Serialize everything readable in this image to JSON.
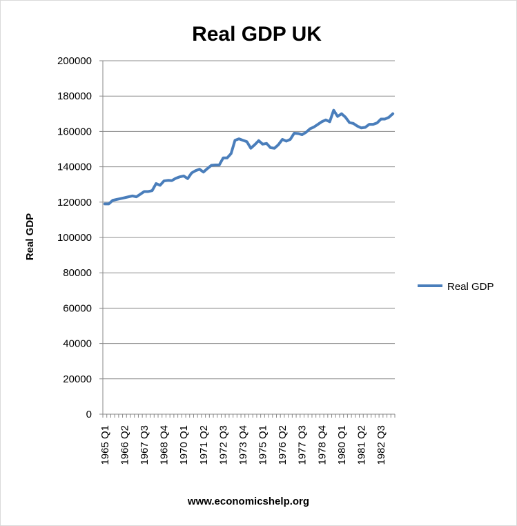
{
  "chart_data": {
    "type": "line",
    "title": "Real GDP UK",
    "ylabel": "Real GDP",
    "xlabel": "www.economicshelp.org",
    "ylim": [
      0,
      200000
    ],
    "yticks": [
      0,
      20000,
      40000,
      60000,
      80000,
      100000,
      120000,
      140000,
      160000,
      180000,
      200000
    ],
    "grid": "horizontal",
    "legend_position": "right",
    "color": "#4a7ebb",
    "x_tick_labels": [
      "1965 Q1",
      "1966 Q2",
      "1967 Q3",
      "1968 Q4",
      "1970 Q1",
      "1971 Q2",
      "1972 Q3",
      "1973 Q4",
      "1975 Q1",
      "1976 Q2",
      "1977 Q3",
      "1978 Q4",
      "1980 Q1",
      "1981 Q2",
      "1982 Q3"
    ],
    "x_tick_label_every": 5,
    "series": [
      {
        "name": "Real GDP",
        "start": "1965 Q1",
        "values": [
          119000,
          119000,
          121000,
          121500,
          122000,
          122500,
          123000,
          123500,
          123000,
          124500,
          126000,
          126000,
          126500,
          130500,
          129500,
          132000,
          132300,
          132200,
          133500,
          134300,
          134800,
          133300,
          136500,
          137800,
          138600,
          137000,
          139000,
          140800,
          141000,
          141000,
          145000,
          145000,
          147500,
          155000,
          155800,
          155000,
          154200,
          150500,
          152500,
          154800,
          152800,
          153200,
          150800,
          150500,
          152500,
          155500,
          154500,
          155500,
          159000,
          158800,
          158200,
          159500,
          161500,
          162500,
          164000,
          165500,
          166500,
          165500,
          172000,
          168500,
          170000,
          168000,
          165000,
          164500,
          163000,
          162000,
          162300,
          164000,
          164000,
          164800,
          167000,
          167000,
          168000,
          170000
        ]
      }
    ]
  }
}
